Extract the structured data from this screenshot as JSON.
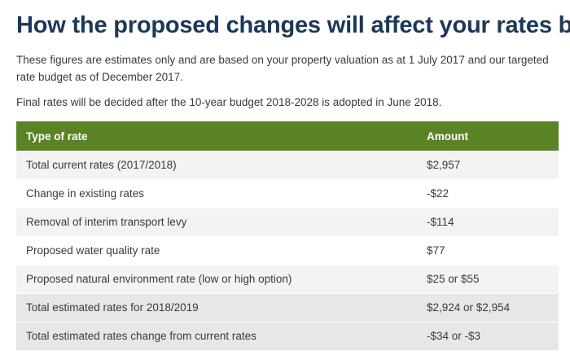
{
  "heading": "How the proposed changes will affect your rates bill",
  "intro": "These figures are estimates only and are based on your property valuation as at 1 July 2017 and our targeted rate budget as of December 2017.",
  "note": "Final rates will be decided after the 10-year budget 2018-2028 is adopted in June 2018.",
  "table": {
    "header": {
      "type": "Type of rate",
      "amount": "Amount"
    },
    "rows": [
      {
        "type": "Total current rates (2017/2018)",
        "amount": "$2,957"
      },
      {
        "type": "Change in existing rates",
        "amount": "-$22"
      },
      {
        "type": "Removal of interim transport levy",
        "amount": "-$114"
      },
      {
        "type": "Proposed water quality rate",
        "amount": "$77"
      },
      {
        "type": "Proposed natural environment rate (low or high option)",
        "amount": "$25 or $55"
      },
      {
        "type": "Total estimated rates for 2018/2019",
        "amount": "$2,924 or $2,954"
      },
      {
        "type": "Total estimated rates change from current rates",
        "amount": "-$34 or -$3"
      }
    ]
  },
  "colors": {
    "heading": "#1c3857",
    "header_bg": "#5b8325",
    "alt_row_bg": "#f3f3f3",
    "total_row_bg": "#e7e7e7"
  }
}
